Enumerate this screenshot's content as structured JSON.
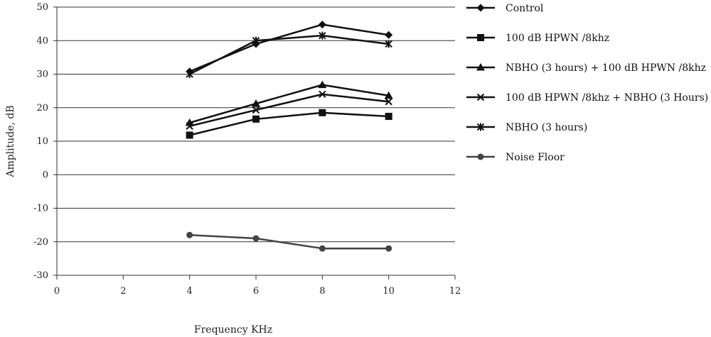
{
  "chart_data": {
    "type": "line",
    "title": "",
    "xlabel": "Frequency KHz",
    "ylabel": "Amplitude, dB",
    "xlim": [
      0,
      12
    ],
    "ylim": [
      -30,
      50
    ],
    "xticks": [
      0,
      2,
      4,
      6,
      8,
      10,
      12
    ],
    "yticks": [
      50,
      40,
      30,
      20,
      10,
      0,
      -10,
      -20,
      -30
    ],
    "grid": "horizontal",
    "legend_position": "right",
    "x": [
      4,
      6,
      8,
      10
    ],
    "series": [
      {
        "name": "Control",
        "marker": "diamond",
        "values": [
          30.8,
          39,
          44.8,
          41.7
        ]
      },
      {
        "name": "100 dB HPWN /8khz",
        "marker": "square",
        "values": [
          11.8,
          16.6,
          18.5,
          17.4
        ]
      },
      {
        "name": "NBHO (3 hours) + 100 dB HPWN /8khz",
        "marker": "triangle",
        "values": [
          15.5,
          21.2,
          26.8,
          23.6
        ]
      },
      {
        "name": "100 dB HPWN /8khz + NBHO (3 Hours)",
        "marker": "x",
        "values": [
          14.5,
          19.3,
          24,
          21.8
        ]
      },
      {
        "name": "NBHO (3 hours)",
        "marker": "star",
        "values": [
          30,
          40,
          41.5,
          39
        ]
      },
      {
        "name": "Noise Floor",
        "marker": "circle",
        "values": [
          -18,
          -19,
          -22,
          -22
        ]
      }
    ],
    "colors": {
      "line": "#111111",
      "noise_floor": "#444444",
      "grid": "#333333"
    }
  }
}
